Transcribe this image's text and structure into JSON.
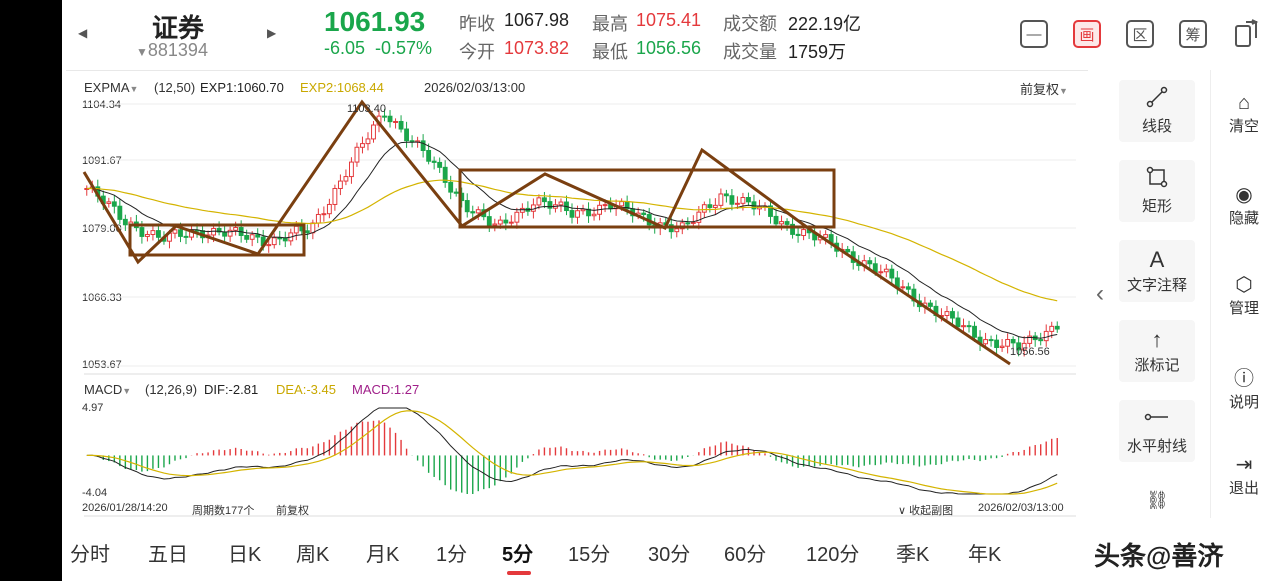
{
  "header": {
    "title": "证券",
    "code": "881394",
    "price": "1061.93",
    "change": "-6.05",
    "change_pct": "-0.57%",
    "stats": {
      "prev_close_label": "昨收",
      "prev_close": "1067.98",
      "high_label": "最高",
      "high": "1075.41",
      "turnover_label": "成交额",
      "turnover": "222.19亿",
      "open_label": "今开",
      "open": "1073.82",
      "low_label": "最低",
      "low": "1056.56",
      "volume_label": "成交量",
      "volume": "1759万"
    },
    "toolbar": [
      "minus-icon",
      "draw-icon",
      "region-icon",
      "chip-icon",
      "rotate-icon"
    ],
    "toolbar_glyphs": {
      "draw": "画",
      "region": "区",
      "chip": "筹"
    }
  },
  "chart": {
    "main_indicator": "EXPMA",
    "main_params": "(12,50)",
    "exp1": "EXP1:1060.70",
    "exp2": "EXP2:1068.44",
    "cursor_time": "2026/02/03/13:00",
    "adjust": "前复权",
    "y_ticks": [
      "1104.34",
      "1091.67",
      "1079.00",
      "1066.33",
      "1053.67"
    ],
    "high_label": "1103.40",
    "low_label": "1056.56",
    "sub_indicator": "MACD",
    "sub_params": "(12,26,9)",
    "dif": "DIF:-2.81",
    "dea": "DEA:-3.45",
    "macd": "MACD:1.27",
    "macd_y_ticks": [
      "4.97",
      "-4.04"
    ],
    "start_time": "2026/01/28/14:20",
    "period_count": "周期数177个",
    "adjust_footer": "前复权",
    "collapse": "收起副图",
    "end_time": "2026/02/03/13:00",
    "colors": {
      "up": "#e4393c",
      "down": "#1aa64b",
      "exp1": "#222222",
      "exp2": "#d4b400",
      "annot": "#7a3f10"
    }
  },
  "chart_data": {
    "type": "line",
    "title": "",
    "xlabel": "",
    "ylabel": "",
    "x_range": [
      "2026/01/28/14:20",
      "2026/02/03/13:00"
    ],
    "ylim": [
      1053.67,
      1104.34
    ],
    "close_path_approx": [
      1088,
      1082,
      1078,
      1080,
      1079,
      1078,
      1080,
      1092,
      1103,
      1095,
      1086,
      1080,
      1086,
      1083,
      1085,
      1082,
      1080,
      1087,
      1084,
      1080,
      1077,
      1073,
      1068,
      1063,
      1059,
      1057,
      1061.93
    ],
    "series": [
      {
        "name": "EXP1:1060.70",
        "last": 1060.7
      },
      {
        "name": "EXP2:1068.44",
        "last": 1068.44
      }
    ],
    "macd": {
      "DIF": -2.81,
      "DEA": -3.45,
      "MACD": 1.27,
      "ylim": [
        -4.04,
        4.97
      ]
    }
  },
  "tools": [
    {
      "label": "线段",
      "icon": "segment-icon"
    },
    {
      "label": "矩形",
      "icon": "rectangle-icon"
    },
    {
      "label": "文字注释",
      "icon": "text-annotation-icon",
      "glyph": "A"
    },
    {
      "label": "涨标记",
      "icon": "up-arrow-icon"
    },
    {
      "label": "水平射线",
      "icon": "horizontal-ray-icon"
    }
  ],
  "right_tools": [
    {
      "label": "清空",
      "icon": "clear-icon"
    },
    {
      "label": "隐藏",
      "icon": "eye-icon"
    },
    {
      "label": "管理",
      "icon": "gear-icon"
    },
    {
      "label": "说明",
      "icon": "help-icon"
    },
    {
      "label": "退出",
      "icon": "exit-icon"
    }
  ],
  "periods": [
    "分时",
    "五日",
    "日K",
    "周K",
    "月K",
    "1分",
    "5分",
    "15分",
    "30分",
    "60分",
    "120分",
    "季K",
    "年K"
  ],
  "active_period": "5分",
  "watermark": "头条@善济"
}
